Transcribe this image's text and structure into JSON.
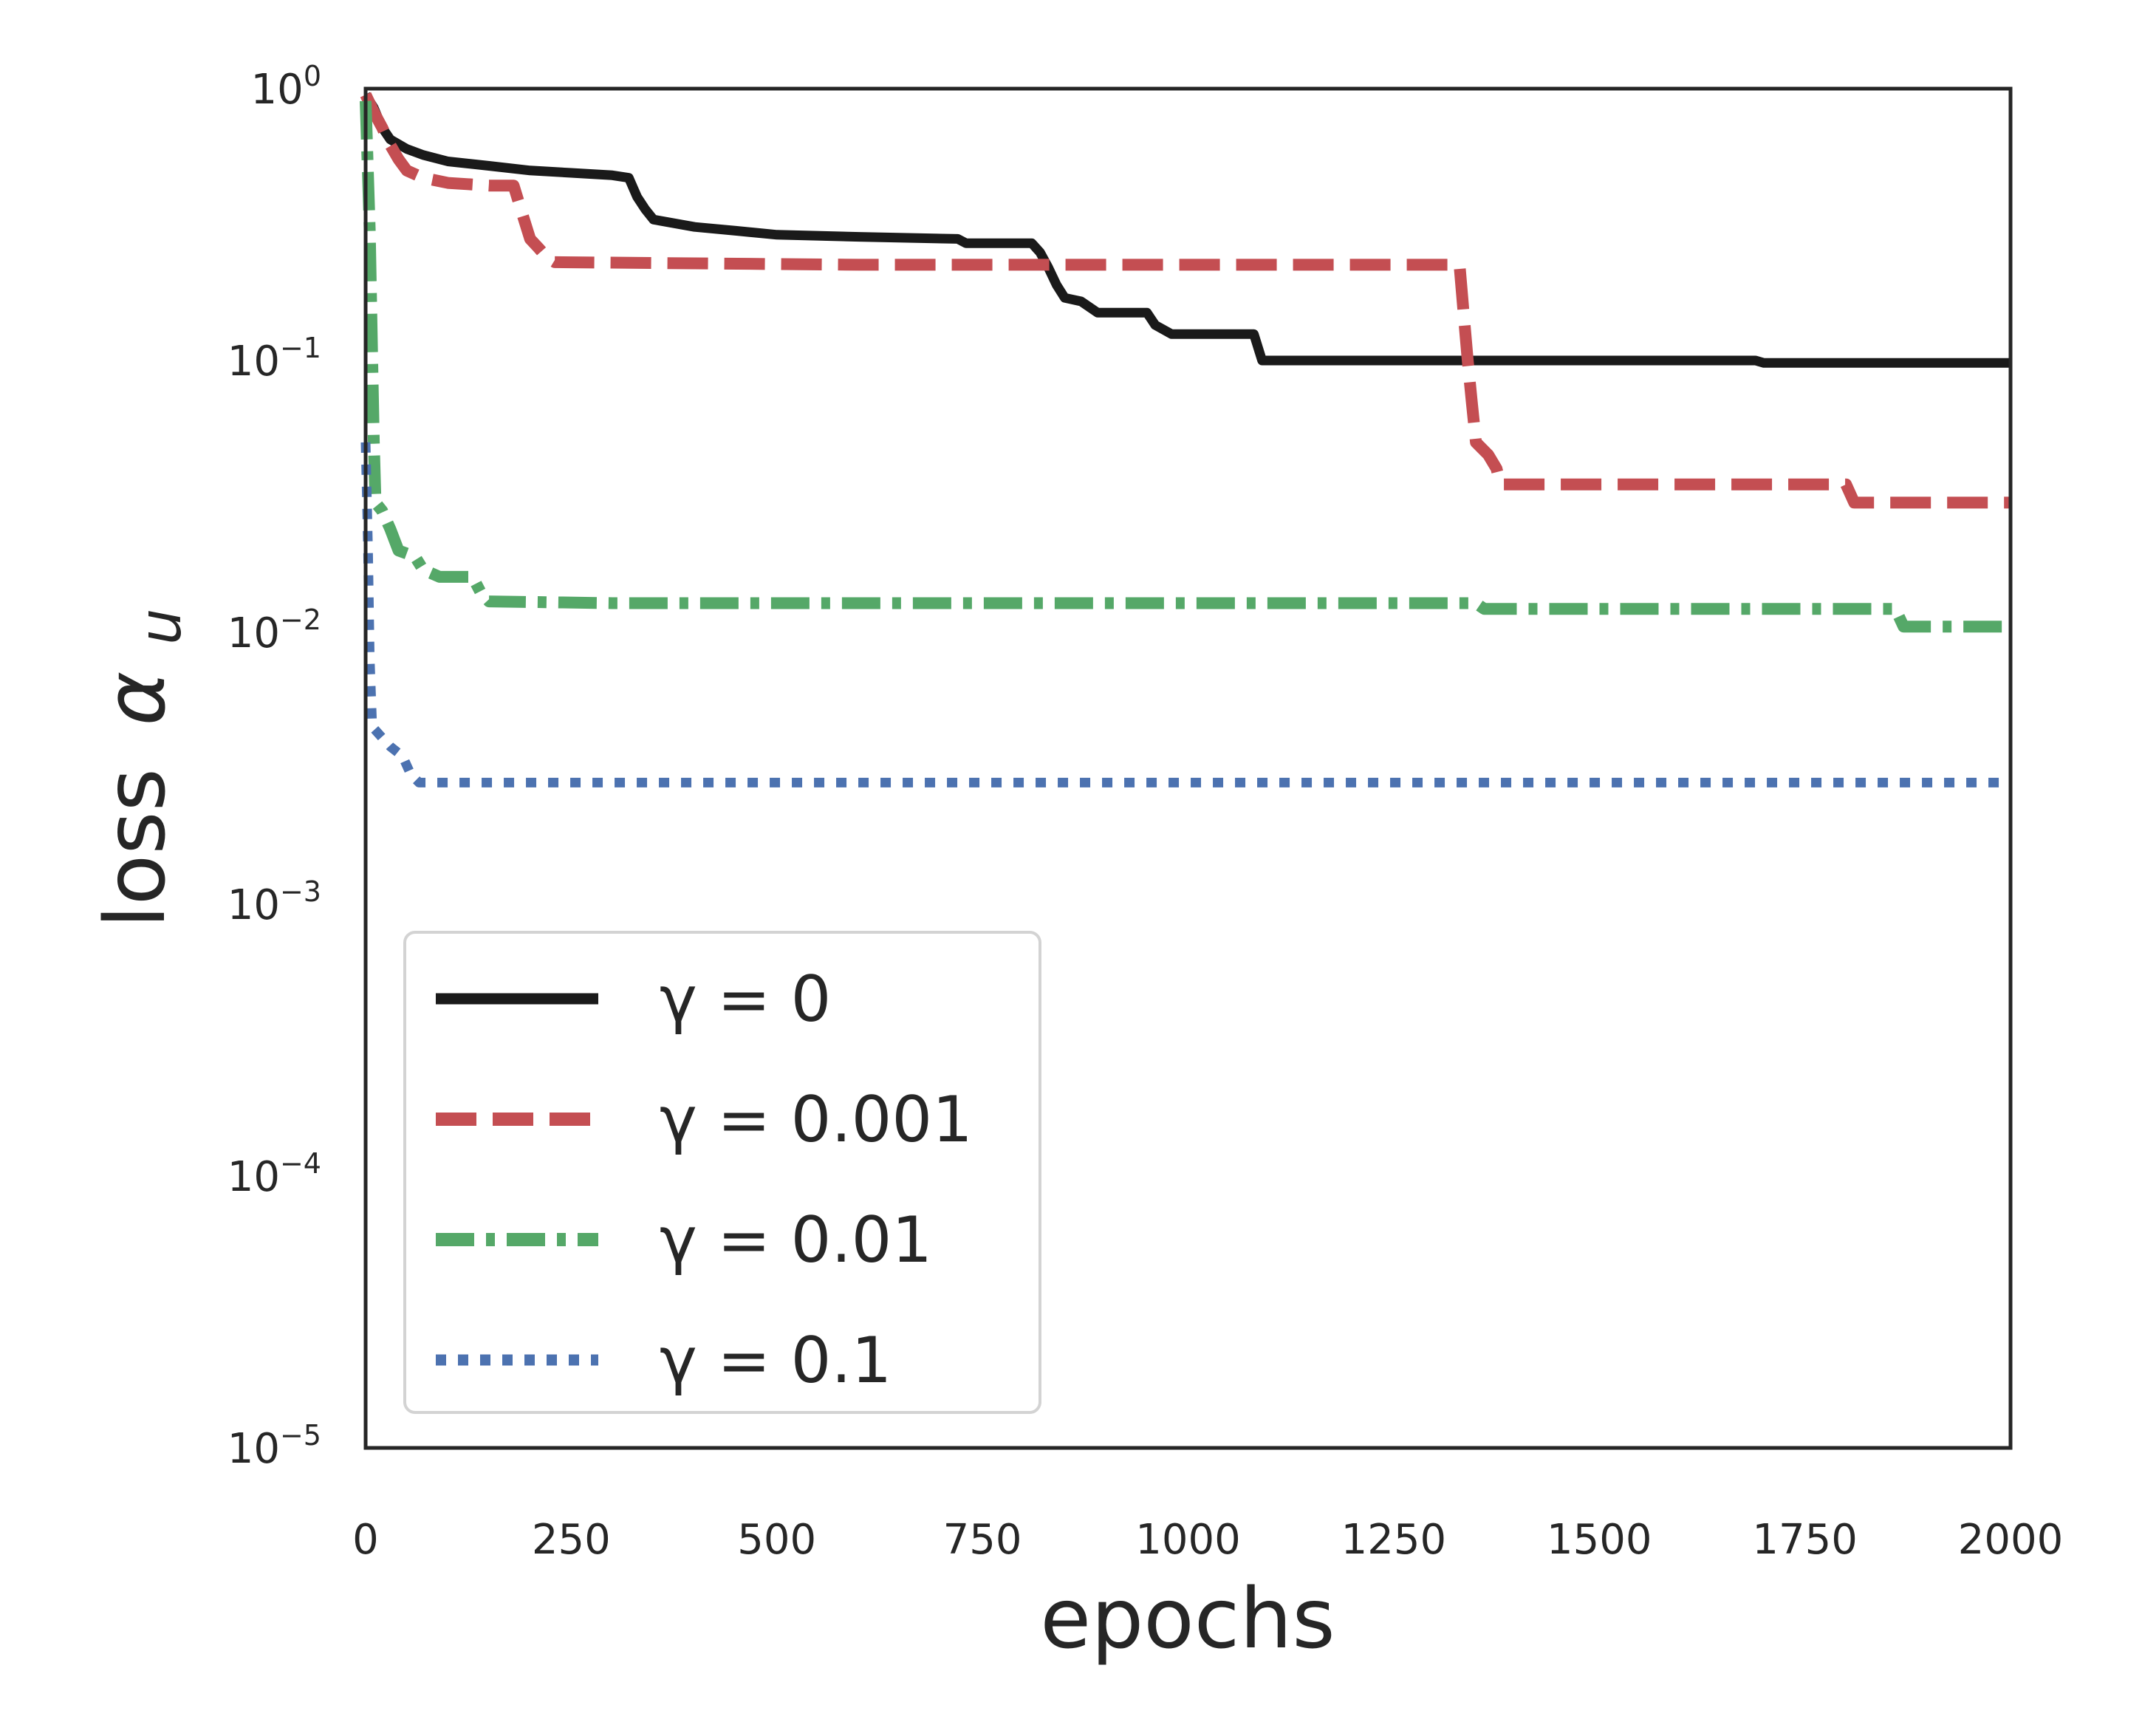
{
  "chart_data": {
    "type": "line",
    "xlabel": "epochs",
    "ylabel": "loss",
    "ylabel_symbol": "α",
    "ylabel_subscript": "u",
    "xlim": [
      0,
      2000
    ],
    "ylim": [
      1e-05,
      1
    ],
    "yscale": "log",
    "xticks": [
      0,
      250,
      500,
      750,
      1000,
      1250,
      1500,
      1750,
      2000
    ],
    "yticks": [
      {
        "base": "10",
        "exp": "0",
        "value": 1
      },
      {
        "base": "10",
        "exp": "−1",
        "value": 0.1
      },
      {
        "base": "10",
        "exp": "−2",
        "value": 0.01
      },
      {
        "base": "10",
        "exp": "−3",
        "value": 0.001
      },
      {
        "base": "10",
        "exp": "−4",
        "value": 0.0001
      },
      {
        "base": "10",
        "exp": "−5",
        "value": 1e-05
      }
    ],
    "grid": false,
    "legend_position": "lower-left",
    "series": [
      {
        "name": "γ = 0",
        "color": "#1a1a1a",
        "style": "solid",
        "points": [
          [
            0,
            0.95
          ],
          [
            10,
            0.85
          ],
          [
            20,
            0.72
          ],
          [
            30,
            0.65
          ],
          [
            50,
            0.6
          ],
          [
            70,
            0.57
          ],
          [
            100,
            0.54
          ],
          [
            150,
            0.52
          ],
          [
            200,
            0.5
          ],
          [
            250,
            0.49
          ],
          [
            300,
            0.48
          ],
          [
            320,
            0.47
          ],
          [
            330,
            0.4
          ],
          [
            340,
            0.36
          ],
          [
            350,
            0.33
          ],
          [
            400,
            0.31
          ],
          [
            450,
            0.3
          ],
          [
            500,
            0.29
          ],
          [
            600,
            0.285
          ],
          [
            720,
            0.28
          ],
          [
            730,
            0.27
          ],
          [
            810,
            0.27
          ],
          [
            820,
            0.25
          ],
          [
            830,
            0.22
          ],
          [
            840,
            0.19
          ],
          [
            850,
            0.17
          ],
          [
            870,
            0.165
          ],
          [
            890,
            0.15
          ],
          [
            950,
            0.15
          ],
          [
            960,
            0.135
          ],
          [
            980,
            0.125
          ],
          [
            1080,
            0.125
          ],
          [
            1090,
            0.1
          ],
          [
            1690,
            0.1
          ],
          [
            1700,
            0.098
          ],
          [
            2000,
            0.098
          ]
        ]
      },
      {
        "name": "γ = 0.001",
        "color": "#c44e52",
        "style": "dashed",
        "points": [
          [
            0,
            0.95
          ],
          [
            10,
            0.82
          ],
          [
            20,
            0.72
          ],
          [
            30,
            0.62
          ],
          [
            40,
            0.55
          ],
          [
            50,
            0.5
          ],
          [
            70,
            0.47
          ],
          [
            100,
            0.45
          ],
          [
            150,
            0.44
          ],
          [
            180,
            0.44
          ],
          [
            190,
            0.35
          ],
          [
            200,
            0.28
          ],
          [
            210,
            0.26
          ],
          [
            220,
            0.24
          ],
          [
            230,
            0.23
          ],
          [
            600,
            0.225
          ],
          [
            1330,
            0.225
          ],
          [
            1335,
            0.15
          ],
          [
            1340,
            0.1
          ],
          [
            1345,
            0.07
          ],
          [
            1350,
            0.05
          ],
          [
            1365,
            0.045
          ],
          [
            1375,
            0.04
          ],
          [
            1380,
            0.035
          ],
          [
            1800,
            0.035
          ],
          [
            1810,
            0.03
          ],
          [
            2000,
            0.03
          ]
        ]
      },
      {
        "name": "γ = 0.01",
        "color": "#55a868",
        "style": "dashdot",
        "points": [
          [
            0,
            0.9
          ],
          [
            5,
            0.3
          ],
          [
            8,
            0.1
          ],
          [
            10,
            0.05
          ],
          [
            12,
            0.03
          ],
          [
            20,
            0.028
          ],
          [
            30,
            0.024
          ],
          [
            40,
            0.02
          ],
          [
            60,
            0.019
          ],
          [
            70,
            0.017
          ],
          [
            90,
            0.016
          ],
          [
            130,
            0.016
          ],
          [
            140,
            0.014
          ],
          [
            150,
            0.013
          ],
          [
            300,
            0.0128
          ],
          [
            1350,
            0.0128
          ],
          [
            1360,
            0.0122
          ],
          [
            1860,
            0.0122
          ],
          [
            1870,
            0.0105
          ],
          [
            2000,
            0.0105
          ]
        ]
      },
      {
        "name": "γ = 0.1",
        "color": "#4c72b0",
        "style": "dotted",
        "points": [
          [
            0,
            0.05
          ],
          [
            3,
            0.02
          ],
          [
            5,
            0.008
          ],
          [
            8,
            0.0045
          ],
          [
            20,
            0.0041
          ],
          [
            30,
            0.0038
          ],
          [
            45,
            0.0035
          ],
          [
            55,
            0.003
          ],
          [
            65,
            0.0028
          ],
          [
            2000,
            0.0028
          ]
        ]
      }
    ]
  }
}
